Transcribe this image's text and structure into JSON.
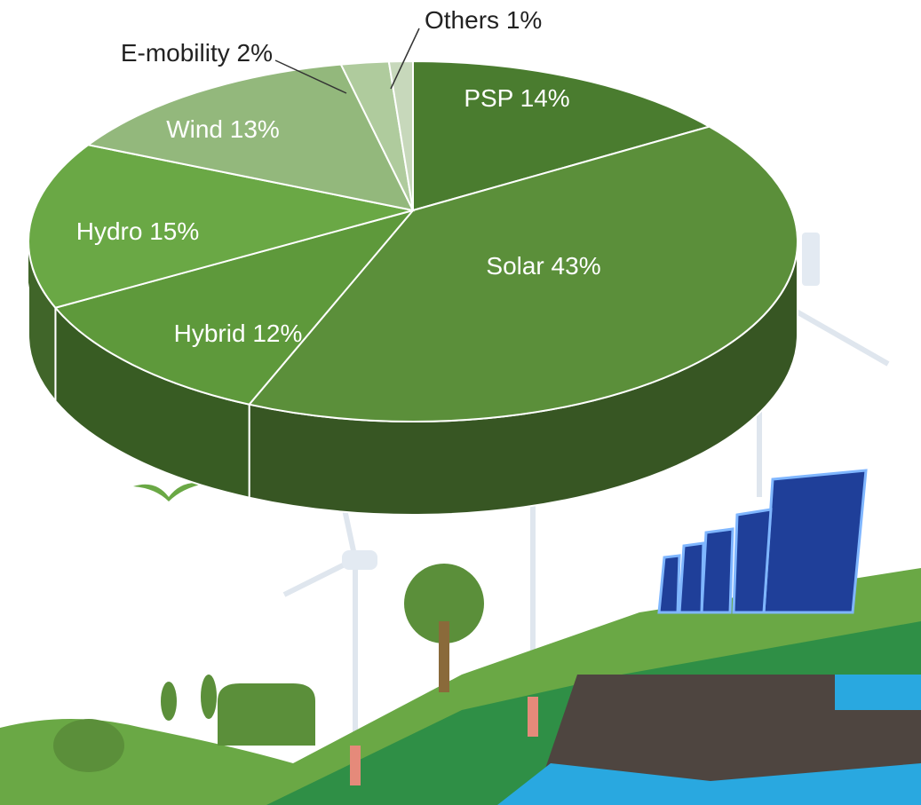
{
  "chart_data": {
    "type": "pie",
    "categories": [
      "PSP",
      "Solar",
      "Hybrid",
      "Hydro",
      "Wind",
      "E-mobility",
      "Others"
    ],
    "values": [
      14,
      43,
      12,
      15,
      13,
      2,
      1
    ],
    "value_labels": [
      "14%",
      "43%",
      "12%",
      "15%",
      "13%",
      "2%",
      "1%"
    ],
    "colors": [
      "#4a7c2f",
      "#5b8f3a",
      "#5e993b",
      "#6aa845",
      "#93b87c",
      "#afcb9d",
      "#c7d8bb"
    ]
  }
}
